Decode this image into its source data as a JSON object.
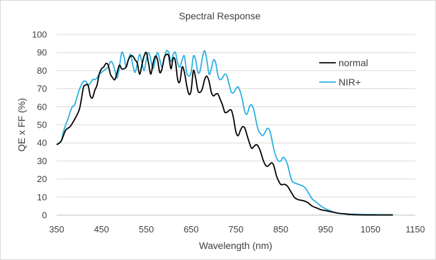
{
  "chart_data": {
    "type": "line",
    "title": "Spectral Response",
    "xlabel": "Wavelength (nm)",
    "ylabel": "QE x FF (%)",
    "xlim": [
      350,
      1150
    ],
    "ylim": [
      0,
      100
    ],
    "xticks": [
      350,
      450,
      550,
      650,
      750,
      850,
      950,
      1050,
      1150
    ],
    "yticks": [
      0,
      10,
      20,
      30,
      40,
      50,
      60,
      70,
      80,
      90,
      100
    ],
    "grid": "horizontal",
    "legend_position": "right",
    "series": [
      {
        "name": "normal",
        "color": "#000000",
        "points": [
          [
            350,
            39
          ],
          [
            360,
            41
          ],
          [
            370,
            47
          ],
          [
            380,
            49
          ],
          [
            390,
            53
          ],
          [
            400,
            58
          ],
          [
            405,
            64
          ],
          [
            410,
            71
          ],
          [
            415,
            72
          ],
          [
            420,
            72
          ],
          [
            425,
            66
          ],
          [
            430,
            65
          ],
          [
            435,
            69
          ],
          [
            440,
            72
          ],
          [
            445,
            78
          ],
          [
            450,
            81
          ],
          [
            455,
            82
          ],
          [
            460,
            84
          ],
          [
            465,
            83
          ],
          [
            470,
            78
          ],
          [
            475,
            76
          ],
          [
            480,
            75
          ],
          [
            485,
            79
          ],
          [
            490,
            83
          ],
          [
            495,
            81
          ],
          [
            500,
            81
          ],
          [
            505,
            82
          ],
          [
            510,
            86
          ],
          [
            515,
            88
          ],
          [
            520,
            88
          ],
          [
            525,
            86
          ],
          [
            530,
            84
          ],
          [
            535,
            78
          ],
          [
            540,
            83
          ],
          [
            545,
            88
          ],
          [
            550,
            90
          ],
          [
            555,
            84
          ],
          [
            560,
            78
          ],
          [
            565,
            84
          ],
          [
            570,
            88
          ],
          [
            575,
            86
          ],
          [
            580,
            79
          ],
          [
            585,
            81
          ],
          [
            590,
            87
          ],
          [
            595,
            89
          ],
          [
            600,
            88
          ],
          [
            605,
            81
          ],
          [
            610,
            87
          ],
          [
            615,
            85
          ],
          [
            620,
            75
          ],
          [
            625,
            74
          ],
          [
            630,
            82
          ],
          [
            635,
            79
          ],
          [
            640,
            72
          ],
          [
            645,
            67
          ],
          [
            650,
            69
          ],
          [
            655,
            80
          ],
          [
            660,
            76
          ],
          [
            665,
            69
          ],
          [
            670,
            68
          ],
          [
            675,
            70
          ],
          [
            680,
            75
          ],
          [
            685,
            77
          ],
          [
            690,
            74
          ],
          [
            695,
            68
          ],
          [
            700,
            66
          ],
          [
            705,
            67
          ],
          [
            710,
            67
          ],
          [
            715,
            64
          ],
          [
            720,
            61
          ],
          [
            725,
            57
          ],
          [
            730,
            57
          ],
          [
            735,
            58
          ],
          [
            740,
            58
          ],
          [
            745,
            53
          ],
          [
            750,
            46
          ],
          [
            755,
            44
          ],
          [
            760,
            47
          ],
          [
            765,
            49
          ],
          [
            770,
            48
          ],
          [
            775,
            44
          ],
          [
            780,
            40
          ],
          [
            785,
            37
          ],
          [
            790,
            38
          ],
          [
            795,
            39
          ],
          [
            800,
            38
          ],
          [
            805,
            35
          ],
          [
            810,
            31
          ],
          [
            815,
            28
          ],
          [
            820,
            27
          ],
          [
            825,
            28
          ],
          [
            830,
            29
          ],
          [
            835,
            27
          ],
          [
            840,
            22
          ],
          [
            845,
            19
          ],
          [
            850,
            17
          ],
          [
            855,
            17
          ],
          [
            860,
            17
          ],
          [
            865,
            16
          ],
          [
            870,
            14
          ],
          [
            875,
            12
          ],
          [
            880,
            10
          ],
          [
            885,
            9
          ],
          [
            890,
            8.5
          ],
          [
            900,
            8
          ],
          [
            910,
            7
          ],
          [
            920,
            5
          ],
          [
            930,
            4
          ],
          [
            940,
            3
          ],
          [
            950,
            2.5
          ],
          [
            960,
            2
          ],
          [
            970,
            1.5
          ],
          [
            980,
            1
          ],
          [
            990,
            0.8
          ],
          [
            1000,
            0.5
          ],
          [
            1010,
            0.3
          ],
          [
            1020,
            0.2
          ],
          [
            1050,
            0.1
          ],
          [
            1100,
            0.1
          ]
        ]
      },
      {
        "name": "NIR+",
        "color": "#2bb0e0",
        "points": [
          [
            350,
            39
          ],
          [
            360,
            41
          ],
          [
            365,
            46
          ],
          [
            370,
            50
          ],
          [
            375,
            53
          ],
          [
            380,
            57
          ],
          [
            385,
            60
          ],
          [
            390,
            61
          ],
          [
            395,
            65
          ],
          [
            400,
            69
          ],
          [
            405,
            72
          ],
          [
            410,
            74
          ],
          [
            415,
            74
          ],
          [
            420,
            72
          ],
          [
            425,
            73
          ],
          [
            430,
            75
          ],
          [
            435,
            75
          ],
          [
            440,
            76
          ],
          [
            445,
            78
          ],
          [
            450,
            79
          ],
          [
            455,
            80
          ],
          [
            460,
            81
          ],
          [
            465,
            82
          ],
          [
            470,
            85
          ],
          [
            475,
            84
          ],
          [
            480,
            80
          ],
          [
            485,
            76
          ],
          [
            490,
            82
          ],
          [
            495,
            90
          ],
          [
            500,
            88
          ],
          [
            505,
            82
          ],
          [
            510,
            86
          ],
          [
            515,
            89
          ],
          [
            520,
            83
          ],
          [
            525,
            79
          ],
          [
            530,
            84
          ],
          [
            535,
            89
          ],
          [
            540,
            85
          ],
          [
            545,
            80
          ],
          [
            550,
            86
          ],
          [
            555,
            90
          ],
          [
            560,
            86
          ],
          [
            565,
            81
          ],
          [
            570,
            86
          ],
          [
            575,
            90
          ],
          [
            580,
            86
          ],
          [
            585,
            82
          ],
          [
            590,
            87
          ],
          [
            595,
            91
          ],
          [
            600,
            90
          ],
          [
            605,
            85
          ],
          [
            610,
            89
          ],
          [
            615,
            90
          ],
          [
            620,
            84
          ],
          [
            625,
            82
          ],
          [
            630,
            86
          ],
          [
            635,
            88
          ],
          [
            640,
            79
          ],
          [
            645,
            77
          ],
          [
            650,
            79
          ],
          [
            655,
            88
          ],
          [
            660,
            86
          ],
          [
            665,
            79
          ],
          [
            670,
            80
          ],
          [
            675,
            87
          ],
          [
            680,
            91
          ],
          [
            685,
            86
          ],
          [
            690,
            78
          ],
          [
            695,
            81
          ],
          [
            700,
            86
          ],
          [
            705,
            84
          ],
          [
            710,
            77
          ],
          [
            715,
            75
          ],
          [
            720,
            76
          ],
          [
            725,
            78
          ],
          [
            730,
            77
          ],
          [
            735,
            72
          ],
          [
            740,
            68
          ],
          [
            745,
            68
          ],
          [
            750,
            70
          ],
          [
            755,
            71
          ],
          [
            760,
            68
          ],
          [
            765,
            63
          ],
          [
            770,
            57
          ],
          [
            775,
            56
          ],
          [
            780,
            60
          ],
          [
            785,
            61
          ],
          [
            790,
            58
          ],
          [
            795,
            52
          ],
          [
            800,
            47
          ],
          [
            805,
            45
          ],
          [
            810,
            44
          ],
          [
            815,
            46
          ],
          [
            820,
            48
          ],
          [
            825,
            47
          ],
          [
            830,
            42
          ],
          [
            835,
            36
          ],
          [
            840,
            32
          ],
          [
            845,
            30
          ],
          [
            850,
            30
          ],
          [
            855,
            32
          ],
          [
            860,
            31
          ],
          [
            865,
            28
          ],
          [
            870,
            23
          ],
          [
            875,
            19
          ],
          [
            880,
            18
          ],
          [
            890,
            17
          ],
          [
            900,
            16
          ],
          [
            905,
            15
          ],
          [
            910,
            13
          ],
          [
            915,
            11
          ],
          [
            920,
            9
          ],
          [
            930,
            7
          ],
          [
            940,
            5
          ],
          [
            950,
            3.5
          ],
          [
            960,
            2.5
          ],
          [
            970,
            1.5
          ],
          [
            980,
            1
          ],
          [
            990,
            0.8
          ],
          [
            1000,
            0.6
          ],
          [
            1020,
            0.5
          ],
          [
            1050,
            0.3
          ],
          [
            1100,
            0.2
          ]
        ]
      }
    ]
  }
}
